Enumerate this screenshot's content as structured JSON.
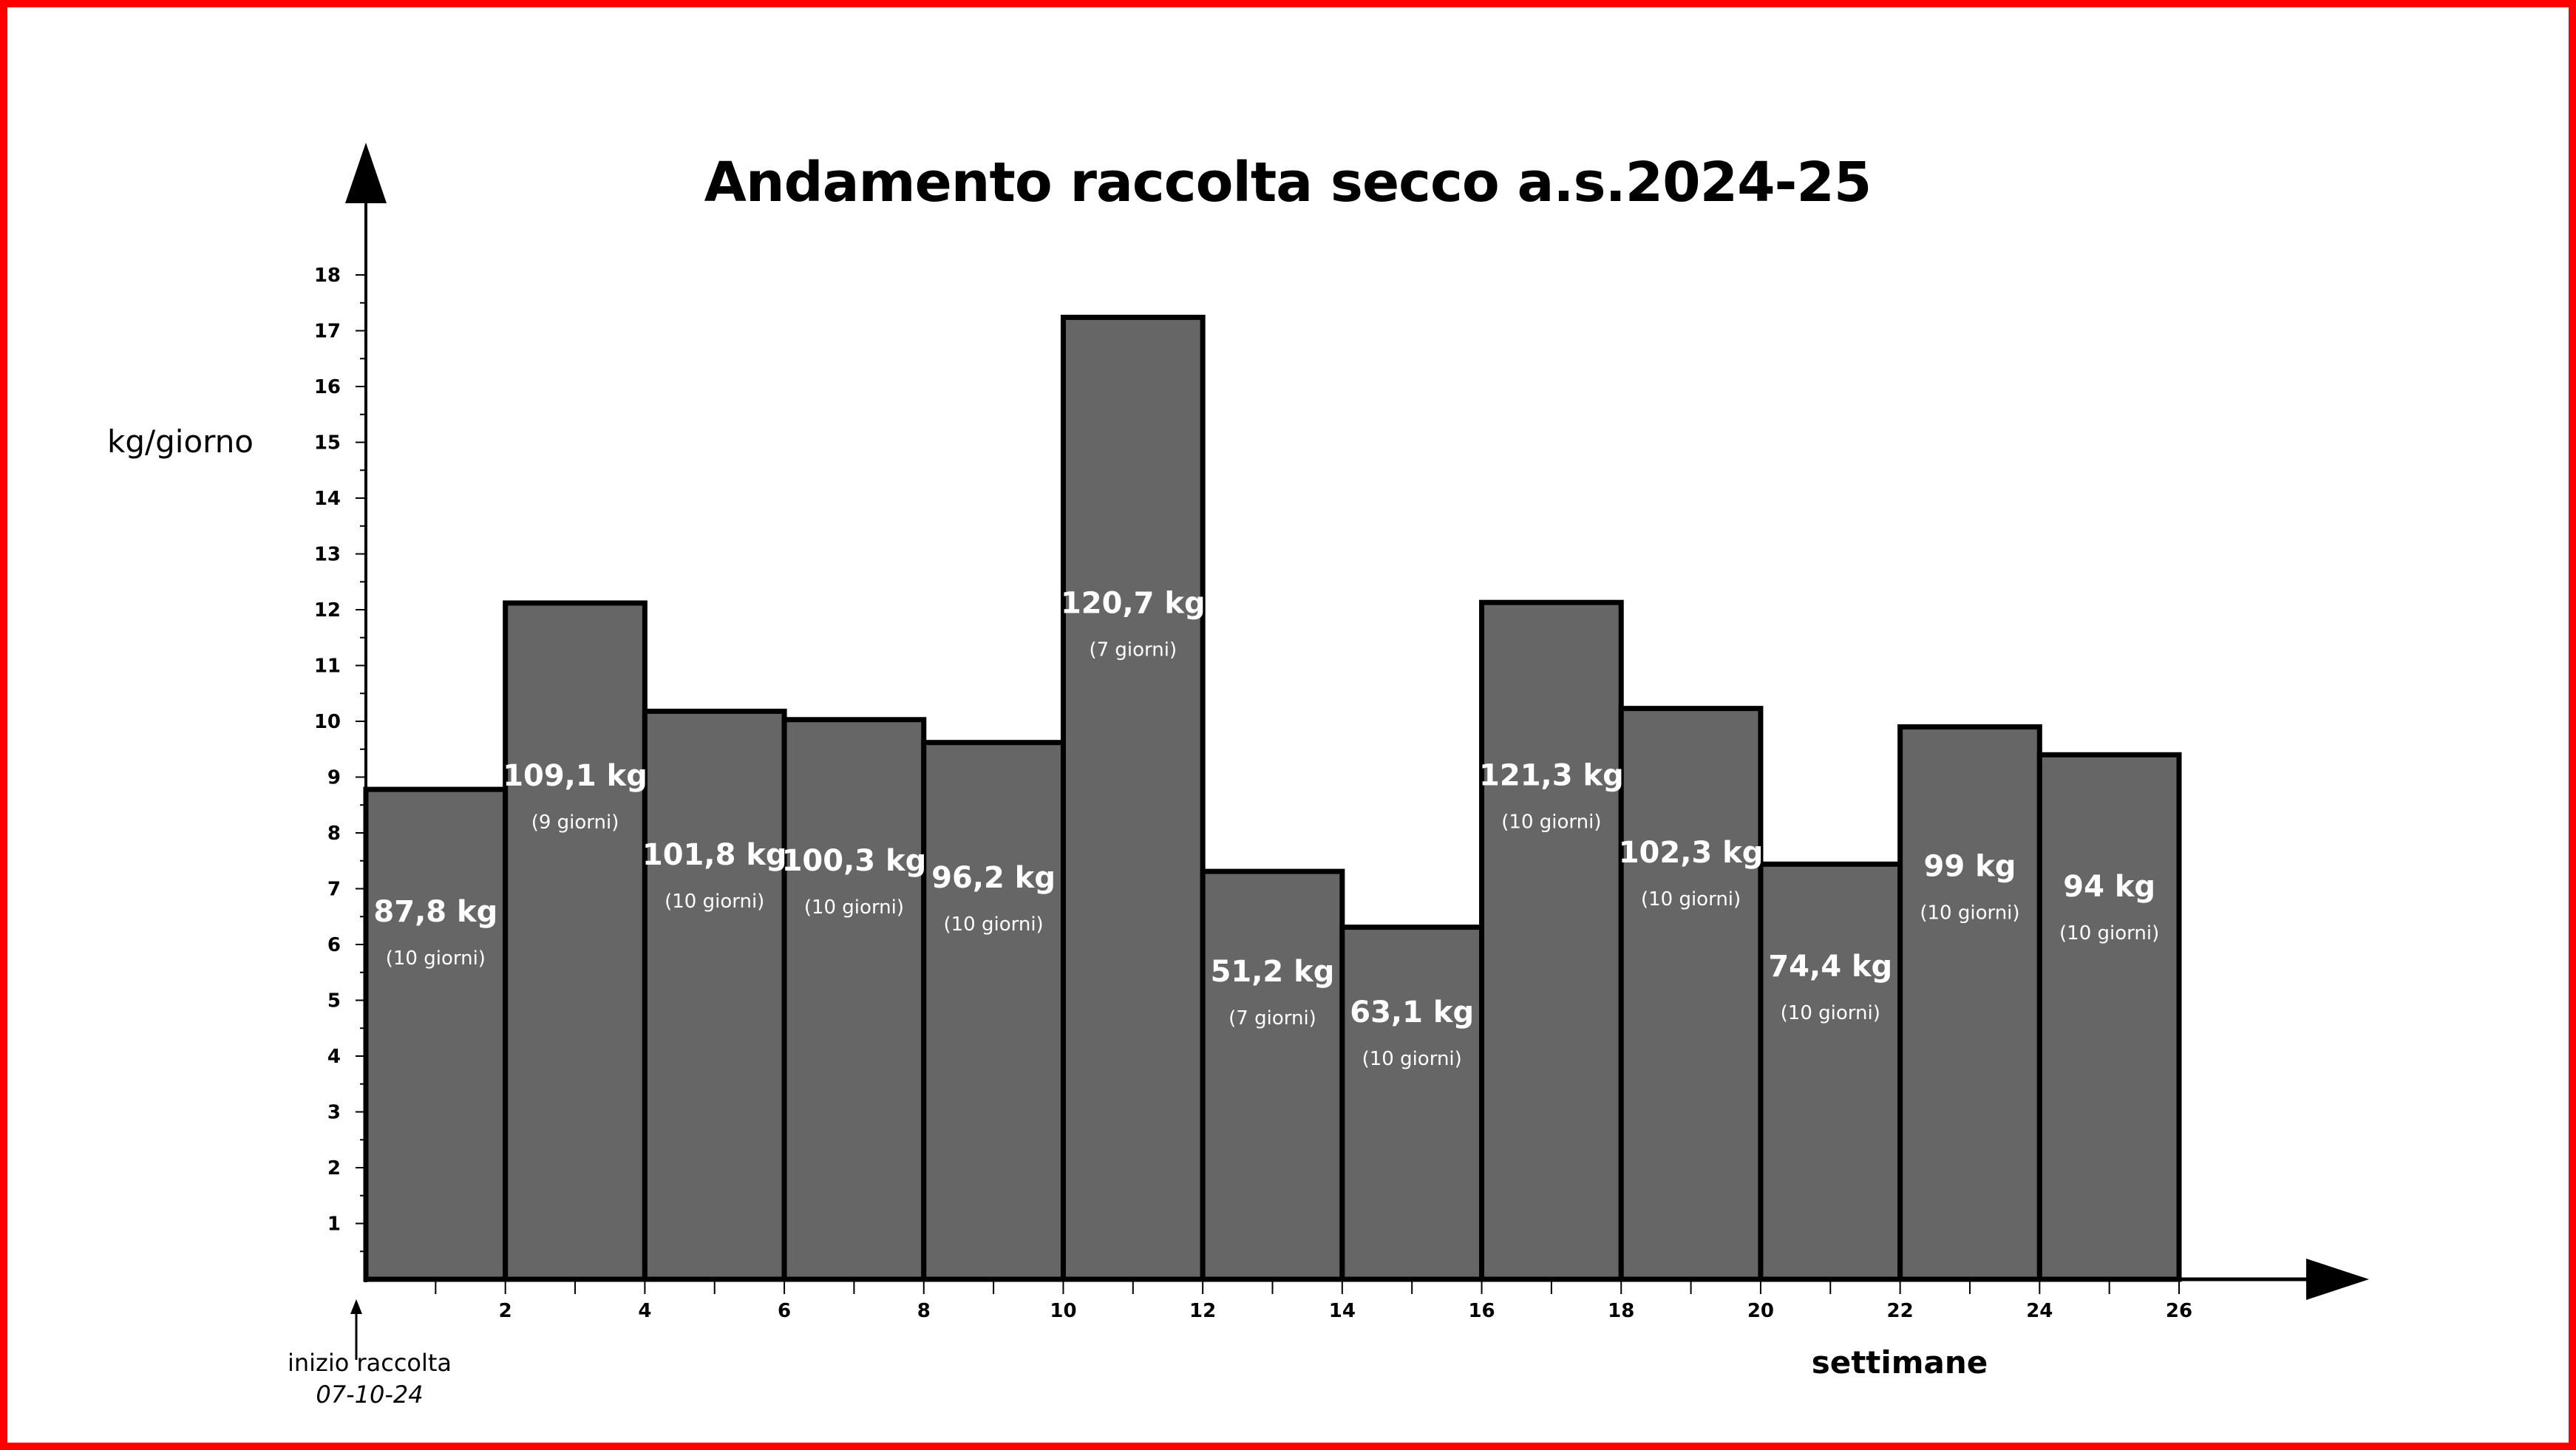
{
  "chart_data": {
    "type": "bar",
    "title": "Andamento raccolta secco a.s.2024-25",
    "ylabel": "kg/giorno",
    "xlabel": "settimane",
    "ylim": [
      0,
      18
    ],
    "xlim": [
      0,
      26
    ],
    "yticks": [
      1,
      2,
      3,
      4,
      5,
      6,
      7,
      8,
      9,
      10,
      11,
      12,
      13,
      14,
      15,
      16,
      17,
      18
    ],
    "xticks": [
      2,
      4,
      6,
      8,
      10,
      12,
      14,
      16,
      18,
      20,
      22,
      24,
      26
    ],
    "bar_color": "#666666",
    "grid": false,
    "start_annotation": {
      "label": "inizio raccolta",
      "date": "07-10-24"
    },
    "bars": [
      {
        "x0": 0,
        "x1": 2,
        "value": 8.78,
        "label": "87,8 kg",
        "sublabel": "(10 giorni)"
      },
      {
        "x0": 2,
        "x1": 4,
        "value": 12.12,
        "label": "109,1 kg",
        "sublabel": "(9 giorni)"
      },
      {
        "x0": 4,
        "x1": 6,
        "value": 10.18,
        "label": "101,8 kg",
        "sublabel": "(10 giorni)"
      },
      {
        "x0": 6,
        "x1": 8,
        "value": 10.03,
        "label": "100,3 kg",
        "sublabel": "(10 giorni)"
      },
      {
        "x0": 8,
        "x1": 10,
        "value": 9.62,
        "label": "96,2 kg",
        "sublabel": "(10 giorni)"
      },
      {
        "x0": 10,
        "x1": 12,
        "value": 17.24,
        "label": "120,7 kg",
        "sublabel": "(7 giorni)"
      },
      {
        "x0": 12,
        "x1": 14,
        "value": 7.31,
        "label": "51,2 kg",
        "sublabel": "(7 giorni)"
      },
      {
        "x0": 14,
        "x1": 16,
        "value": 6.31,
        "label": "63,1 kg",
        "sublabel": "(10 giorni)"
      },
      {
        "x0": 16,
        "x1": 18,
        "value": 12.13,
        "label": "121,3 kg",
        "sublabel": "(10 giorni)"
      },
      {
        "x0": 18,
        "x1": 20,
        "value": 10.23,
        "label": "102,3 kg",
        "sublabel": "(10 giorni)"
      },
      {
        "x0": 20,
        "x1": 22,
        "value": 7.44,
        "label": "74,4 kg",
        "sublabel": "(10 giorni)"
      },
      {
        "x0": 22,
        "x1": 24,
        "value": 9.9,
        "label": "99 kg",
        "sublabel": "(10 giorni)"
      },
      {
        "x0": 24,
        "x1": 26,
        "value": 9.4,
        "label": "94 kg",
        "sublabel": "(10 giorni)"
      }
    ]
  }
}
